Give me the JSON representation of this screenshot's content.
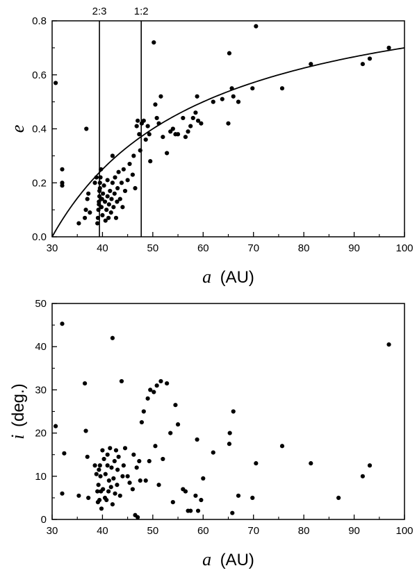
{
  "chart_data": [
    {
      "type": "scatter",
      "xlabel_symbol": "a",
      "xlabel_unit": "(AU)",
      "ylabel_symbol": "e",
      "xlim": [
        30,
        100
      ],
      "ylim": [
        0,
        0.8
      ],
      "xticks": [
        "30",
        "40",
        "50",
        "60",
        "70",
        "80",
        "90",
        "100"
      ],
      "yticks": [
        "0.0",
        "0.2",
        "0.4",
        "0.6",
        "0.8"
      ],
      "resonances": [
        {
          "label": "2:3",
          "a": 39.4
        },
        {
          "label": "1:2",
          "a": 47.7
        }
      ],
      "curve_perihelion": 30,
      "points": [
        [
          30.7,
          0.57
        ],
        [
          32.0,
          0.25
        ],
        [
          32.0,
          0.2
        ],
        [
          32.0,
          0.19
        ],
        [
          35.3,
          0.05
        ],
        [
          36.5,
          0.07
        ],
        [
          36.7,
          0.1
        ],
        [
          36.8,
          0.4
        ],
        [
          37.0,
          0.14
        ],
        [
          37.2,
          0.16
        ],
        [
          37.5,
          0.09
        ],
        [
          38.5,
          0.2
        ],
        [
          38.8,
          0.22
        ],
        [
          39.0,
          0.05
        ],
        [
          39.1,
          0.07
        ],
        [
          39.2,
          0.1
        ],
        [
          39.3,
          0.12
        ],
        [
          39.3,
          0.13
        ],
        [
          39.4,
          0.15
        ],
        [
          39.4,
          0.17
        ],
        [
          39.5,
          0.18
        ],
        [
          39.5,
          0.2
        ],
        [
          39.6,
          0.22
        ],
        [
          39.7,
          0.25
        ],
        [
          39.8,
          0.11
        ],
        [
          39.9,
          0.14
        ],
        [
          40.0,
          0.08
        ],
        [
          40.1,
          0.16
        ],
        [
          40.3,
          0.19
        ],
        [
          40.5,
          0.13
        ],
        [
          40.6,
          0.06
        ],
        [
          40.8,
          0.1
        ],
        [
          41.0,
          0.15
        ],
        [
          41.0,
          0.21
        ],
        [
          41.2,
          0.07
        ],
        [
          41.3,
          0.12
        ],
        [
          41.5,
          0.17
        ],
        [
          41.7,
          0.09
        ],
        [
          41.8,
          0.14
        ],
        [
          42.0,
          0.2
        ],
        [
          42.0,
          0.3
        ],
        [
          42.2,
          0.11
        ],
        [
          42.4,
          0.16
        ],
        [
          42.5,
          0.22
        ],
        [
          42.7,
          0.07
        ],
        [
          42.9,
          0.13
        ],
        [
          43.0,
          0.18
        ],
        [
          43.2,
          0.24
        ],
        [
          43.5,
          0.14
        ],
        [
          43.8,
          0.2
        ],
        [
          44.0,
          0.11
        ],
        [
          44.2,
          0.25
        ],
        [
          44.5,
          0.17
        ],
        [
          45.0,
          0.21
        ],
        [
          45.4,
          0.27
        ],
        [
          46.0,
          0.23
        ],
        [
          46.2,
          0.3
        ],
        [
          46.5,
          0.18
        ],
        [
          46.8,
          0.41
        ],
        [
          47.0,
          0.43
        ],
        [
          47.3,
          0.38
        ],
        [
          47.5,
          0.32
        ],
        [
          47.8,
          0.42
        ],
        [
          48.2,
          0.43
        ],
        [
          48.6,
          0.36
        ],
        [
          49.0,
          0.41
        ],
        [
          49.3,
          0.38
        ],
        [
          49.5,
          0.28
        ],
        [
          50.2,
          0.72
        ],
        [
          50.5,
          0.49
        ],
        [
          50.8,
          0.44
        ],
        [
          51.2,
          0.42
        ],
        [
          51.6,
          0.52
        ],
        [
          52.0,
          0.37
        ],
        [
          52.8,
          0.31
        ],
        [
          53.5,
          0.39
        ],
        [
          54.0,
          0.4
        ],
        [
          54.5,
          0.38
        ],
        [
          55.0,
          0.38
        ],
        [
          56.0,
          0.44
        ],
        [
          56.5,
          0.37
        ],
        [
          57.0,
          0.39
        ],
        [
          57.5,
          0.41
        ],
        [
          58.0,
          0.44
        ],
        [
          58.5,
          0.46
        ],
        [
          58.8,
          0.52
        ],
        [
          59.0,
          0.43
        ],
        [
          59.6,
          0.42
        ],
        [
          62.0,
          0.5
        ],
        [
          63.8,
          0.51
        ],
        [
          65.0,
          0.42
        ],
        [
          65.2,
          0.68
        ],
        [
          65.7,
          0.55
        ],
        [
          66.0,
          0.52
        ],
        [
          67.0,
          0.5
        ],
        [
          69.8,
          0.55
        ],
        [
          70.5,
          0.78
        ],
        [
          75.7,
          0.55
        ],
        [
          81.4,
          0.64
        ],
        [
          91.7,
          0.64
        ],
        [
          93.1,
          0.66
        ],
        [
          96.9,
          0.7
        ]
      ]
    },
    {
      "type": "scatter",
      "xlabel_symbol": "a",
      "xlabel_unit": "(AU)",
      "ylabel_symbol": "i",
      "ylabel_unit": "(deg.)",
      "xlim": [
        30,
        100
      ],
      "ylim": [
        0,
        50
      ],
      "xticks": [
        "30",
        "40",
        "50",
        "60",
        "70",
        "80",
        "90",
        "100"
      ],
      "yticks": [
        "0",
        "10",
        "20",
        "30",
        "40",
        "50"
      ],
      "points": [
        [
          30.7,
          21.6
        ],
        [
          32.0,
          45.3
        ],
        [
          32.4,
          15.3
        ],
        [
          32.0,
          6.0
        ],
        [
          35.3,
          5.5
        ],
        [
          36.5,
          31.5
        ],
        [
          36.7,
          20.5
        ],
        [
          37.0,
          14.5
        ],
        [
          37.2,
          5.0
        ],
        [
          38.5,
          12.5
        ],
        [
          38.8,
          10.5
        ],
        [
          39.0,
          6.5
        ],
        [
          39.1,
          4.0
        ],
        [
          39.2,
          8.0
        ],
        [
          39.3,
          11.5
        ],
        [
          39.4,
          4.5
        ],
        [
          39.5,
          12.5
        ],
        [
          39.6,
          10.0
        ],
        [
          39.7,
          6.5
        ],
        [
          39.8,
          2.5
        ],
        [
          40.0,
          16.0
        ],
        [
          40.1,
          7.0
        ],
        [
          40.3,
          14.0
        ],
        [
          40.5,
          5.0
        ],
        [
          40.6,
          10.5
        ],
        [
          40.8,
          4.5
        ],
        [
          41.0,
          12.5
        ],
        [
          41.0,
          15.0
        ],
        [
          41.2,
          6.5
        ],
        [
          41.3,
          9.0
        ],
        [
          41.5,
          16.5
        ],
        [
          41.7,
          7.5
        ],
        [
          41.8,
          12.0
        ],
        [
          42.0,
          42.0
        ],
        [
          42.0,
          3.5
        ],
        [
          42.2,
          9.5
        ],
        [
          42.4,
          13.5
        ],
        [
          42.5,
          6.0
        ],
        [
          42.7,
          16.0
        ],
        [
          42.9,
          8.0
        ],
        [
          43.0,
          11.5
        ],
        [
          43.2,
          14.5
        ],
        [
          43.5,
          5.5
        ],
        [
          43.8,
          32.0
        ],
        [
          44.0,
          10.0
        ],
        [
          44.2,
          12.5
        ],
        [
          44.5,
          16.5
        ],
        [
          45.0,
          10.0
        ],
        [
          45.4,
          8.5
        ],
        [
          46.0,
          7.0
        ],
        [
          46.2,
          15.0
        ],
        [
          46.5,
          1.0
        ],
        [
          46.8,
          12.0
        ],
        [
          47.0,
          0.5
        ],
        [
          47.3,
          13.5
        ],
        [
          47.5,
          9.0
        ],
        [
          47.8,
          22.5
        ],
        [
          48.2,
          25.0
        ],
        [
          48.6,
          9.0
        ],
        [
          49.0,
          28.0
        ],
        [
          49.3,
          13.5
        ],
        [
          49.5,
          30.0
        ],
        [
          50.2,
          29.5
        ],
        [
          50.5,
          17.0
        ],
        [
          50.8,
          31.0
        ],
        [
          51.2,
          8.0
        ],
        [
          51.6,
          32.0
        ],
        [
          52.0,
          14.0
        ],
        [
          52.8,
          31.5
        ],
        [
          53.5,
          20.0
        ],
        [
          54.0,
          4.0
        ],
        [
          54.5,
          26.5
        ],
        [
          55.0,
          22.0
        ],
        [
          56.0,
          7.0
        ],
        [
          56.5,
          6.5
        ],
        [
          57.0,
          2.0
        ],
        [
          57.5,
          2.0
        ],
        [
          58.5,
          5.5
        ],
        [
          58.8,
          18.5
        ],
        [
          59.0,
          2.0
        ],
        [
          59.6,
          4.5
        ],
        [
          60.0,
          9.5
        ],
        [
          62.0,
          15.5
        ],
        [
          65.2,
          17.5
        ],
        [
          65.3,
          20.0
        ],
        [
          65.8,
          1.5
        ],
        [
          66.0,
          25.0
        ],
        [
          67.0,
          5.5
        ],
        [
          69.8,
          5.0
        ],
        [
          70.5,
          13.0
        ],
        [
          75.7,
          17.0
        ],
        [
          81.4,
          13.0
        ],
        [
          86.9,
          5.0
        ],
        [
          91.7,
          10.0
        ],
        [
          93.1,
          12.5
        ],
        [
          96.9,
          40.5
        ]
      ]
    }
  ]
}
